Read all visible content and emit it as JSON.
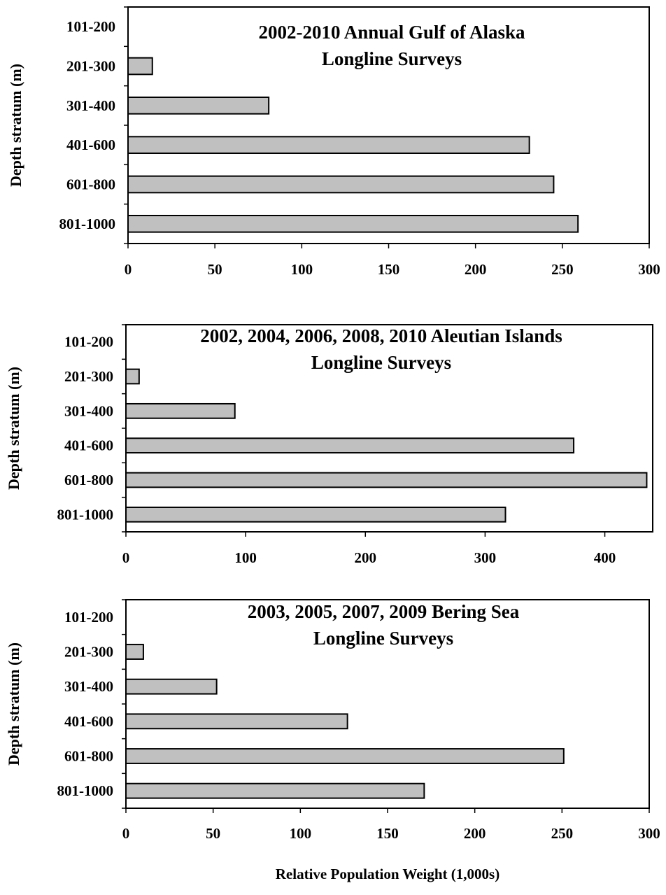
{
  "chart_data": [
    {
      "type": "bar",
      "orientation": "horizontal",
      "title": [
        "2002-2010 Annual Gulf of Alaska",
        "Longline Surveys"
      ],
      "ylabel": "Depth stratum (m)",
      "xlabel": "",
      "categories": [
        "101-200",
        "201-300",
        "301-400",
        "401-600",
        "601-800",
        "801-1000"
      ],
      "values": [
        0,
        14,
        81,
        231,
        245,
        259
      ],
      "xlim": [
        0,
        300
      ],
      "xticks": [
        0,
        50,
        100,
        150,
        200,
        250,
        300
      ],
      "grid": false,
      "bar_color": "#c0c0c0"
    },
    {
      "type": "bar",
      "orientation": "horizontal",
      "title": [
        "2002, 2004, 2006, 2008, 2010 Aleutian Islands",
        "Longline Surveys"
      ],
      "ylabel": "Depth stratum (m)",
      "xlabel": "",
      "categories": [
        "101-200",
        "201-300",
        "301-400",
        "401-600",
        "601-800",
        "801-1000"
      ],
      "values": [
        0,
        11,
        91,
        374,
        435,
        317
      ],
      "xlim": [
        0,
        440
      ],
      "xticks": [
        0,
        100,
        200,
        300,
        400
      ],
      "grid": false,
      "bar_color": "#c0c0c0"
    },
    {
      "type": "bar",
      "orientation": "horizontal",
      "title": [
        "2003, 2005, 2007, 2009 Bering Sea",
        "Longline Surveys"
      ],
      "ylabel": "Depth stratum (m)",
      "xlabel": "Relative Population Weight (1,000s)",
      "categories": [
        "101-200",
        "201-300",
        "301-400",
        "401-600",
        "601-800",
        "801-1000"
      ],
      "values": [
        0,
        10,
        52,
        127,
        251,
        171
      ],
      "xlim": [
        0,
        300
      ],
      "xticks": [
        0,
        50,
        100,
        150,
        200,
        250,
        300
      ],
      "grid": false,
      "bar_color": "#c0c0c0"
    }
  ]
}
